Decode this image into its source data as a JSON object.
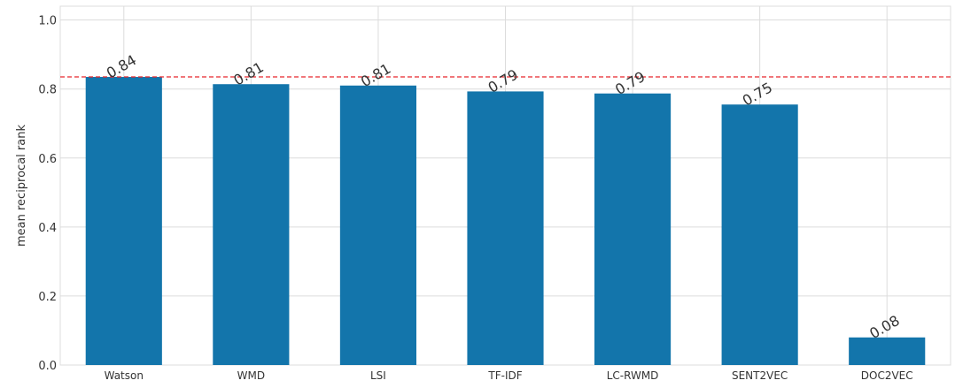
{
  "chart_data": {
    "type": "bar",
    "title": "",
    "xlabel": "",
    "ylabel": "mean reciprocal rank",
    "categories": [
      "Watson",
      "WMD",
      "LSI",
      "TF-IDF",
      "LC-RWMD",
      "SENT2VEC",
      "DOC2VEC"
    ],
    "values": [
      0.835,
      0.814,
      0.81,
      0.793,
      0.787,
      0.755,
      0.08
    ],
    "data_labels": [
      "0.84",
      "0.81",
      "0.81",
      "0.79",
      "0.79",
      "0.75",
      "0.08"
    ],
    "ylim": [
      0,
      1.04
    ],
    "yticks": [
      0.0,
      0.2,
      0.4,
      0.6,
      0.8,
      1.0
    ],
    "ytick_labels": [
      "0.0",
      "0.2",
      "0.4",
      "0.6",
      "0.8",
      "1.0"
    ],
    "reference_line": {
      "value": 0.835,
      "style": "dashed",
      "color": "#e8262a"
    },
    "grid": true,
    "bar_color": "#1375ab",
    "grid_color": "#dcdcdc",
    "background": "#ffffff"
  }
}
